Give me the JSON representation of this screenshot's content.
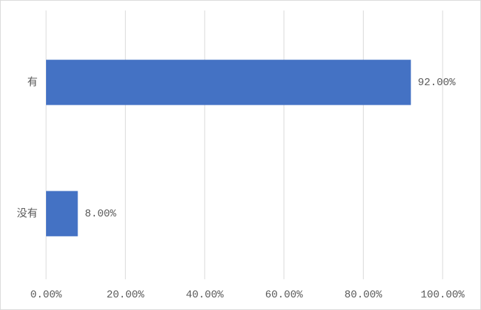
{
  "chart_data": {
    "type": "hbar",
    "categories": [
      "有",
      "没有"
    ],
    "values": [
      92,
      8
    ],
    "value_labels": [
      "92.00%",
      "8.00%"
    ],
    "color": "#4472c4",
    "xlim": [
      0,
      100
    ],
    "xticks": [
      {
        "value": 0,
        "label": "0.00%"
      },
      {
        "value": 20,
        "label": "20.00%"
      },
      {
        "value": 40,
        "label": "40.00%"
      },
      {
        "value": 60,
        "label": "60.00%"
      },
      {
        "value": 80,
        "label": "80.00%"
      },
      {
        "value": 100,
        "label": "100.00%"
      }
    ],
    "grid": true
  }
}
